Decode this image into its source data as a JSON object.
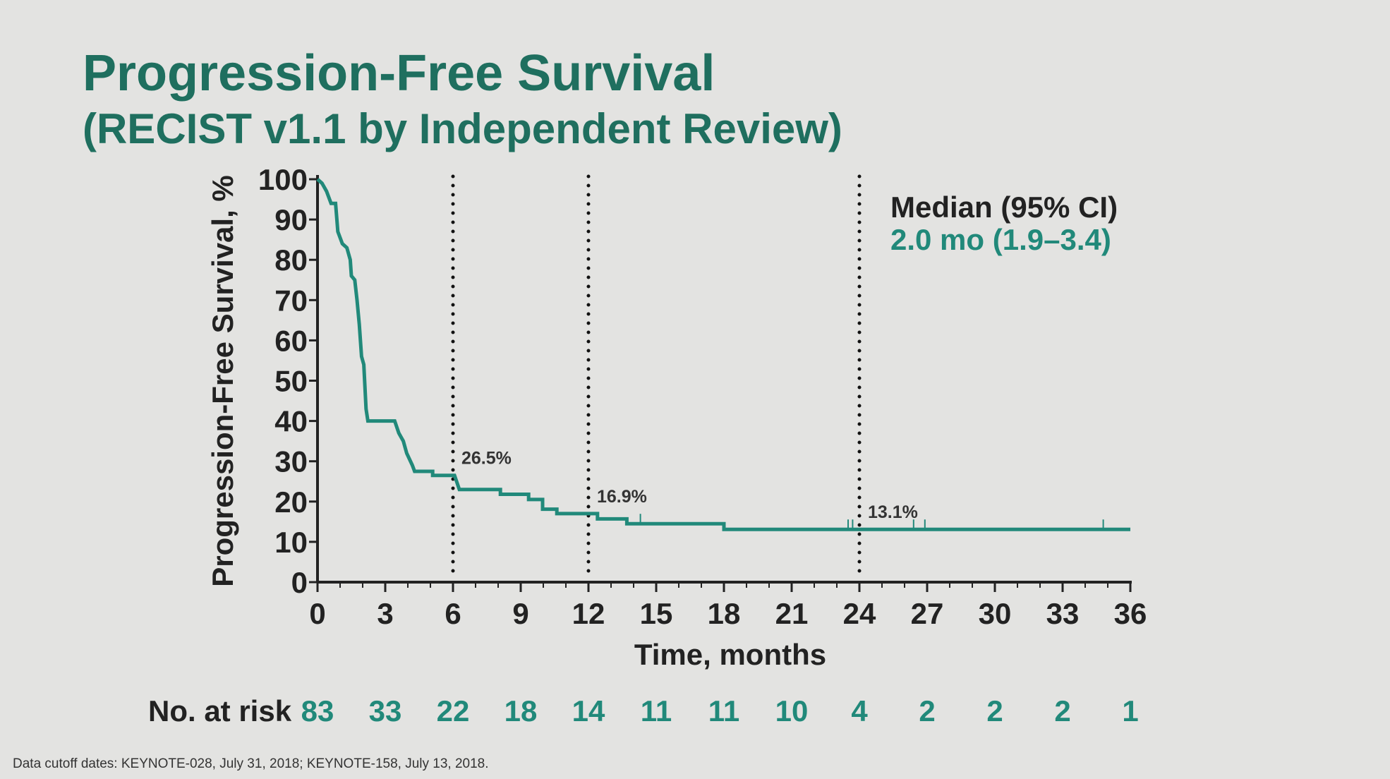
{
  "title": "Progression-Free Survival",
  "subtitle": "(RECIST v1.1 by Independent Review)",
  "footer": "Data cutoff dates: KEYNOTE-028, July 31, 2018; KEYNOTE-158, July 13, 2018.",
  "colors": {
    "curve": "#21897a",
    "title": "#1f6f5f",
    "background": "#e3e3e1"
  },
  "chart_data": {
    "type": "line",
    "subtype": "kaplan-meier step",
    "xlabel": "Time, months",
    "ylabel": "Progression-Free Survival, %",
    "xlim": [
      0,
      36
    ],
    "ylim": [
      0,
      100
    ],
    "xticks": [
      "0",
      "3",
      "6",
      "9",
      "12",
      "15",
      "18",
      "21",
      "24",
      "27",
      "30",
      "33",
      "36"
    ],
    "yticks": [
      "0",
      "10",
      "20",
      "30",
      "40",
      "50",
      "60",
      "70",
      "80",
      "90",
      "100"
    ],
    "series": [
      {
        "name": "PFS",
        "points": [
          [
            0,
            100
          ],
          [
            0.2,
            99
          ],
          [
            0.4,
            97
          ],
          [
            0.6,
            94
          ],
          [
            0.8,
            94
          ],
          [
            0.9,
            87
          ],
          [
            1.1,
            84
          ],
          [
            1.3,
            83
          ],
          [
            1.45,
            80
          ],
          [
            1.5,
            76
          ],
          [
            1.65,
            75
          ],
          [
            1.75,
            70
          ],
          [
            1.85,
            64
          ],
          [
            1.95,
            56
          ],
          [
            2.05,
            54
          ],
          [
            2.15,
            43
          ],
          [
            2.23,
            40
          ],
          [
            3.42,
            40
          ],
          [
            3.6,
            37
          ],
          [
            3.8,
            35
          ],
          [
            3.95,
            32
          ],
          [
            4.2,
            29
          ],
          [
            4.3,
            27.5
          ],
          [
            5.1,
            27.5
          ],
          [
            5.1,
            26.5
          ],
          [
            6.07,
            26.5
          ],
          [
            6.28,
            23
          ],
          [
            8.1,
            23
          ],
          [
            8.1,
            21.8
          ],
          [
            9.35,
            21.8
          ],
          [
            9.35,
            20.5
          ],
          [
            9.97,
            20.5
          ],
          [
            9.97,
            18.1
          ],
          [
            10.6,
            18.1
          ],
          [
            10.6,
            17
          ],
          [
            12.4,
            17
          ],
          [
            12.4,
            15.7
          ],
          [
            13.7,
            15.7
          ],
          [
            13.7,
            14.5
          ],
          [
            18,
            14.5
          ],
          [
            18,
            13.1
          ],
          [
            36,
            13.1
          ]
        ],
        "censored": [
          [
            14.3,
            14.5
          ],
          [
            23.5,
            13.1
          ],
          [
            23.7,
            13.1
          ],
          [
            26.4,
            13.1
          ],
          [
            26.9,
            13.1
          ],
          [
            34.8,
            13.1
          ]
        ]
      }
    ],
    "reference_lines": [
      {
        "month": 6,
        "label": "26.5%"
      },
      {
        "month": 12,
        "label": "16.9%"
      },
      {
        "month": 24,
        "label": "13.1%"
      }
    ],
    "legend": {
      "header": "Median (95% CI)",
      "value": "2.0 mo (1.9–3.4)",
      "placement": "top-right"
    },
    "at_risk": {
      "label": "No. at risk",
      "values": [
        "83",
        "33",
        "22",
        "18",
        "14",
        "11",
        "11",
        "10",
        "4",
        "2",
        "2",
        "2",
        "1"
      ]
    }
  }
}
